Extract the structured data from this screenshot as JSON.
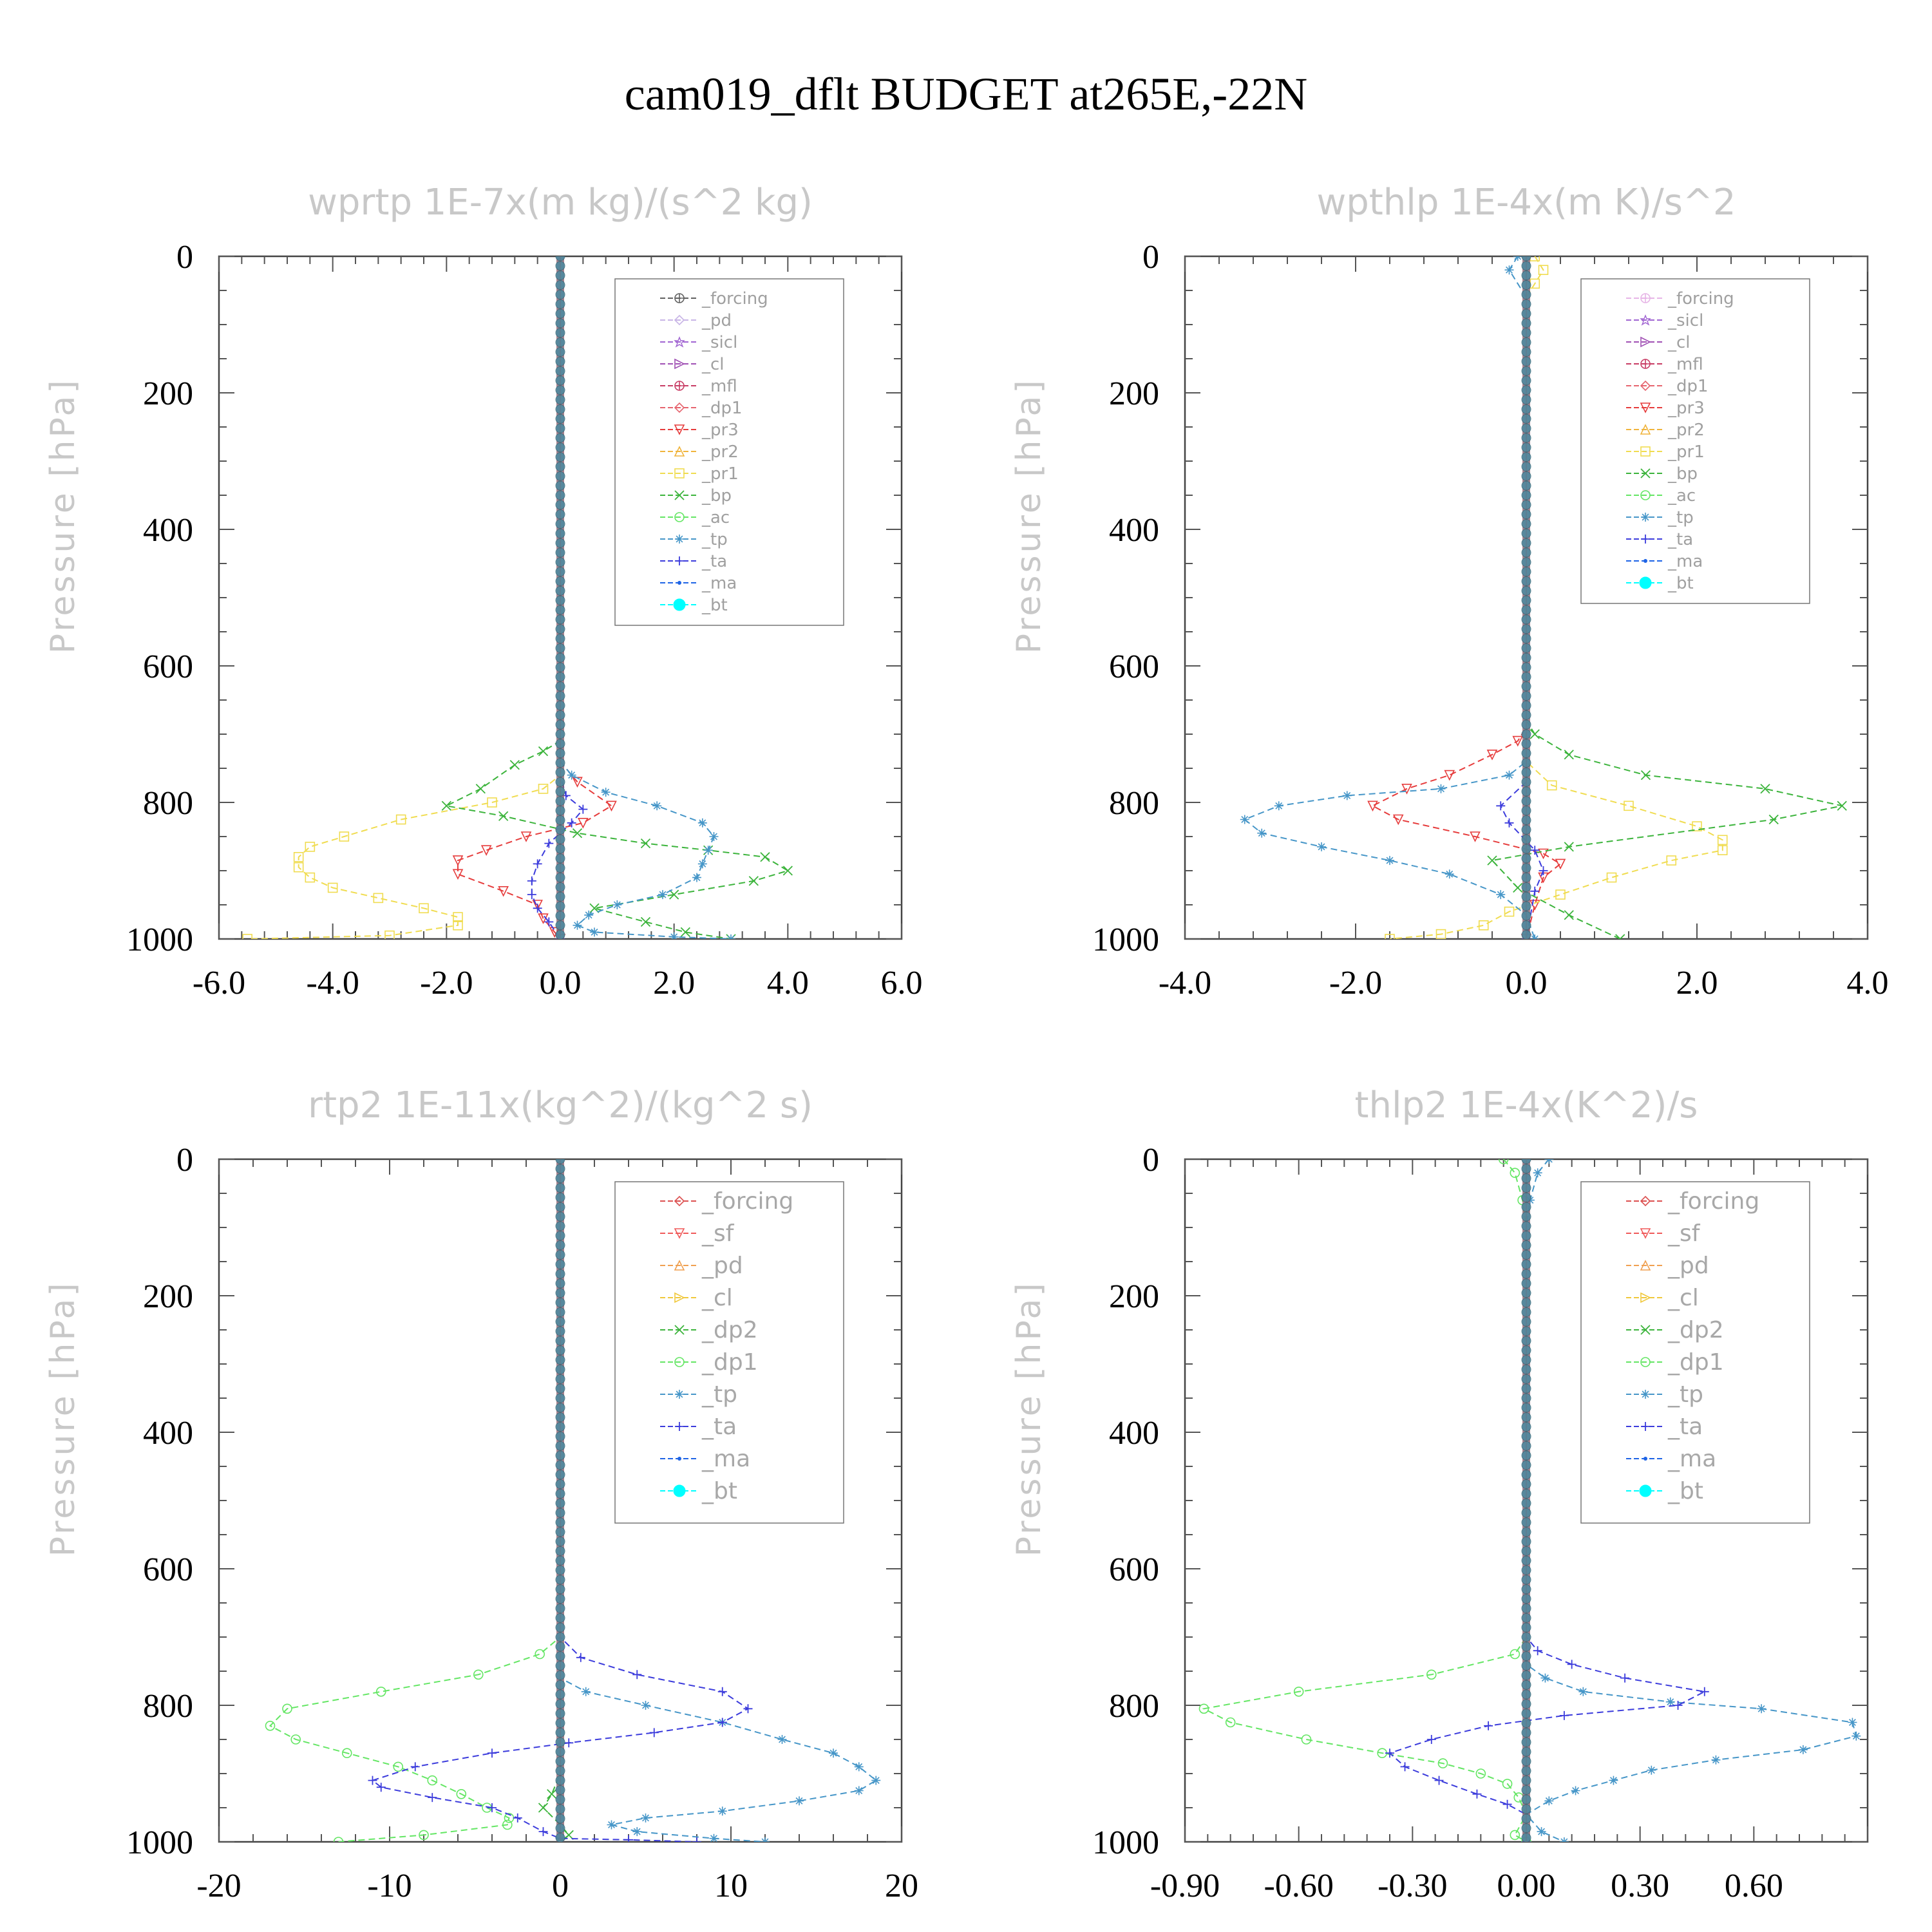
{
  "figure": {
    "title": "cam019_dflt  BUDGET at265E,-22N"
  },
  "chart_data": [
    {
      "type": "line",
      "id": "wprtp",
      "title": "wprtp   1E-7x(m kg)/(s^2 kg)",
      "ylabel": "Pressure [hPa]",
      "xlim": [
        -6.0,
        6.0
      ],
      "ylim": [
        1000,
        0
      ],
      "y_inverted": true,
      "xticks": [
        -6.0,
        -4.0,
        -2.0,
        0.0,
        2.0,
        4.0,
        6.0
      ],
      "xtick_labels": [
        "-6.0",
        "-4.0",
        "-2.0",
        "0.0",
        "2.0",
        "4.0",
        "6.0"
      ],
      "yticks": [
        0,
        200,
        400,
        600,
        800,
        1000
      ],
      "ytick_labels": [
        "0",
        "200",
        "400",
        "600",
        "800",
        "1000"
      ],
      "legend_position": "top-right",
      "legend_large": false,
      "series": [
        {
          "name": "_forcing",
          "color": "#606060",
          "marker": "circle-plus",
          "x": [],
          "y": []
        },
        {
          "name": "_pd",
          "color": "#c8b4e6",
          "marker": "diamond",
          "x": [],
          "y": []
        },
        {
          "name": "_sicl",
          "color": "#a064d2",
          "marker": "star",
          "x": [],
          "y": []
        },
        {
          "name": "_cl",
          "color": "#a050b4",
          "marker": "triangle-right",
          "x": [],
          "y": []
        },
        {
          "name": "_mfl",
          "color": "#c83c64",
          "marker": "circle-plus",
          "x": [],
          "y": []
        },
        {
          "name": "_dp1",
          "color": "#e6646e",
          "marker": "diamond",
          "x": [],
          "y": []
        },
        {
          "name": "_pr3",
          "color": "#e63c3c",
          "marker": "triangle-down",
          "x": [
            0,
            0,
            0,
            0.3,
            0.9,
            0.4,
            -0.6,
            -1.3,
            -1.8,
            -1.8,
            -1.0,
            -0.4,
            -0.3,
            -0.1,
            0
          ],
          "y": [
            0,
            700,
            740,
            770,
            805,
            830,
            850,
            870,
            885,
            905,
            930,
            950,
            970,
            990,
            1000
          ]
        },
        {
          "name": "_pr2",
          "color": "#f0b43c",
          "marker": "triangle-up",
          "x": [],
          "y": []
        },
        {
          "name": "_pr1",
          "color": "#f0dc50",
          "marker": "square",
          "x": [
            0,
            0,
            -0.3,
            -1.2,
            -2.8,
            -3.8,
            -4.4,
            -4.6,
            -4.6,
            -4.4,
            -4.0,
            -3.2,
            -2.4,
            -1.8,
            -1.8,
            -3.0,
            -5.5
          ],
          "y": [
            0,
            760,
            780,
            800,
            825,
            850,
            865,
            880,
            895,
            910,
            925,
            940,
            955,
            968,
            980,
            995,
            1000
          ]
        },
        {
          "name": "_bp",
          "color": "#3cb43c",
          "marker": "x",
          "x": [
            0,
            0,
            -0.3,
            -0.8,
            -1.4,
            -2.0,
            -1.0,
            0.3,
            1.5,
            2.6,
            3.6,
            4.0,
            3.4,
            2.0,
            0.6,
            1.5,
            2.2,
            3.0
          ],
          "y": [
            0,
            710,
            725,
            745,
            780,
            805,
            820,
            845,
            860,
            870,
            880,
            900,
            915,
            935,
            955,
            975,
            990,
            1000
          ]
        },
        {
          "name": "_ac",
          "color": "#64e664",
          "marker": "circle",
          "x": [],
          "y": []
        },
        {
          "name": "_tp",
          "color": "#4696c8",
          "marker": "asterisk",
          "x": [
            0,
            0,
            0.2,
            0.8,
            1.7,
            2.5,
            2.7,
            2.6,
            2.5,
            2.4,
            1.8,
            1.0,
            0.5,
            0.3,
            0.6,
            2.0,
            3.0
          ],
          "y": [
            0,
            740,
            760,
            785,
            805,
            830,
            850,
            870,
            890,
            910,
            935,
            950,
            965,
            980,
            990,
            997,
            1000
          ]
        },
        {
          "name": "_ta",
          "color": "#3c3cdc",
          "marker": "plus",
          "x": [
            0,
            0,
            0.1,
            0.4,
            0.2,
            -0.2,
            -0.4,
            -0.5,
            -0.5,
            -0.4,
            -0.2,
            0
          ],
          "y": [
            0,
            760,
            790,
            810,
            830,
            860,
            890,
            915,
            935,
            955,
            975,
            1000
          ]
        },
        {
          "name": "_ma",
          "color": "#1e64e6",
          "marker": "dot",
          "x": [],
          "y": []
        },
        {
          "name": "_bt",
          "color": "#00ffff",
          "marker": "filled-circle",
          "x": [],
          "y": []
        }
      ]
    },
    {
      "type": "line",
      "id": "wpthlp",
      "title": "wpthlp   1E-4x(m K)/s^2",
      "ylabel": "Pressure [hPa]",
      "xlim": [
        -4.0,
        4.0
      ],
      "ylim": [
        1000,
        0
      ],
      "y_inverted": true,
      "xticks": [
        -4.0,
        -2.0,
        0.0,
        2.0,
        4.0
      ],
      "xtick_labels": [
        "-4.0",
        "-2.0",
        "0.0",
        "2.0",
        "4.0"
      ],
      "yticks": [
        0,
        200,
        400,
        600,
        800,
        1000
      ],
      "ytick_labels": [
        "0",
        "200",
        "400",
        "600",
        "800",
        "1000"
      ],
      "legend_position": "top-right",
      "legend_large": false,
      "series": [
        {
          "name": "_forcing",
          "color": "#e6b4e6",
          "marker": "circle-plus",
          "x": [],
          "y": []
        },
        {
          "name": "_sicl",
          "color": "#a064d2",
          "marker": "star",
          "x": [],
          "y": []
        },
        {
          "name": "_cl",
          "color": "#a050b4",
          "marker": "triangle-right",
          "x": [],
          "y": []
        },
        {
          "name": "_mfl",
          "color": "#c83c64",
          "marker": "circle-plus",
          "x": [],
          "y": []
        },
        {
          "name": "_dp1",
          "color": "#e6646e",
          "marker": "diamond",
          "x": [],
          "y": []
        },
        {
          "name": "_pr3",
          "color": "#e63c3c",
          "marker": "triangle-down",
          "x": [
            0,
            0,
            -0.1,
            -0.4,
            -0.9,
            -1.4,
            -1.8,
            -1.5,
            -0.6,
            0.2,
            0.4,
            0.2,
            0.1,
            0
          ],
          "y": [
            0,
            690,
            710,
            730,
            760,
            780,
            805,
            825,
            850,
            875,
            890,
            910,
            950,
            1000
          ]
        },
        {
          "name": "_pr2",
          "color": "#f0b43c",
          "marker": "triangle-up",
          "x": [],
          "y": []
        },
        {
          "name": "_pr1",
          "color": "#f0dc50",
          "marker": "square",
          "x": [
            0.1,
            0.2,
            0.1,
            0,
            0,
            0.3,
            1.2,
            2.0,
            2.3,
            2.3,
            1.7,
            1.0,
            0.4,
            -0.2,
            -0.5,
            -1.0,
            -1.6
          ],
          "y": [
            0,
            20,
            40,
            60,
            740,
            775,
            805,
            835,
            855,
            870,
            885,
            910,
            935,
            960,
            980,
            993,
            1000
          ]
        },
        {
          "name": "_bp",
          "color": "#3cb43c",
          "marker": "x",
          "x": [
            0,
            0,
            0.1,
            0.5,
            1.4,
            2.8,
            3.7,
            2.9,
            0.5,
            -0.4,
            -0.1,
            0.5,
            1.1
          ],
          "y": [
            0,
            680,
            700,
            730,
            760,
            780,
            805,
            825,
            865,
            885,
            925,
            965,
            1000
          ]
        },
        {
          "name": "_ac",
          "color": "#64e664",
          "marker": "circle",
          "x": [],
          "y": []
        },
        {
          "name": "_tp",
          "color": "#4696c8",
          "marker": "asterisk",
          "x": [
            -0.1,
            -0.2,
            0,
            0,
            -0.2,
            -1.0,
            -2.1,
            -2.9,
            -3.3,
            -3.1,
            -2.4,
            -1.6,
            -0.9,
            -0.3,
            0,
            0.1
          ],
          "y": [
            0,
            20,
            60,
            740,
            760,
            780,
            790,
            805,
            825,
            845,
            865,
            885,
            905,
            935,
            965,
            1000
          ]
        },
        {
          "name": "_ta",
          "color": "#3c3cdc",
          "marker": "plus",
          "x": [
            0,
            0,
            -0.3,
            -0.2,
            0.1,
            0.2,
            0.1,
            0
          ],
          "y": [
            0,
            770,
            805,
            830,
            870,
            900,
            930,
            1000
          ]
        },
        {
          "name": "_ma",
          "color": "#1e64e6",
          "marker": "dot",
          "x": [],
          "y": []
        },
        {
          "name": "_bt",
          "color": "#00ffff",
          "marker": "filled-circle",
          "x": [],
          "y": []
        }
      ]
    },
    {
      "type": "line",
      "id": "rtp2",
      "title": "rtp2   1E-11x(kg^2)/(kg^2 s)",
      "ylabel": "Pressure [hPa]",
      "xlim": [
        -20,
        20
      ],
      "ylim": [
        1000,
        0
      ],
      "y_inverted": true,
      "xticks": [
        -20,
        -10,
        0,
        10,
        20
      ],
      "xtick_labels": [
        "-20",
        "-10",
        "0",
        "10",
        "20"
      ],
      "yticks": [
        0,
        200,
        400,
        600,
        800,
        1000
      ],
      "ytick_labels": [
        "0",
        "200",
        "400",
        "600",
        "800",
        "1000"
      ],
      "legend_position": "top-right",
      "legend_large": true,
      "series": [
        {
          "name": "_forcing",
          "color": "#dc5050",
          "marker": "diamond",
          "x": [],
          "y": []
        },
        {
          "name": "_sf",
          "color": "#f05a5a",
          "marker": "triangle-down",
          "x": [],
          "y": []
        },
        {
          "name": "_pd",
          "color": "#f0a050",
          "marker": "triangle-up",
          "x": [],
          "y": []
        },
        {
          "name": "_cl",
          "color": "#f0c83c",
          "marker": "triangle-right",
          "x": [],
          "y": []
        },
        {
          "name": "_dp2",
          "color": "#3cb43c",
          "marker": "x",
          "x": [
            0,
            0,
            -0.5,
            -1.0,
            0,
            0.5,
            0
          ],
          "y": [
            0,
            900,
            930,
            950,
            975,
            990,
            1000
          ]
        },
        {
          "name": "_dp1",
          "color": "#64e664",
          "marker": "circle",
          "x": [
            0,
            0,
            -1.2,
            -4.8,
            -10.5,
            -16.0,
            -17.0,
            -15.5,
            -12.5,
            -9.5,
            -7.5,
            -5.8,
            -4.3,
            -3.0,
            -3.1,
            -8.0,
            -13.0
          ],
          "y": [
            0,
            700,
            725,
            755,
            780,
            805,
            830,
            850,
            870,
            890,
            910,
            930,
            950,
            965,
            975,
            990,
            1000
          ]
        },
        {
          "name": "_tp",
          "color": "#4696c8",
          "marker": "asterisk",
          "x": [
            0,
            0,
            1.5,
            5.0,
            9.5,
            13.0,
            16.0,
            17.5,
            18.5,
            17.5,
            14.0,
            9.5,
            5.0,
            3.0,
            4.5,
            9.0,
            12.0
          ],
          "y": [
            0,
            760,
            780,
            800,
            825,
            850,
            870,
            890,
            910,
            925,
            940,
            955,
            965,
            975,
            985,
            995,
            1000
          ]
        },
        {
          "name": "_ta",
          "color": "#3c3cdc",
          "marker": "plus",
          "x": [
            0,
            0,
            1.2,
            4.5,
            9.5,
            11.0,
            9.5,
            5.5,
            0.5,
            -4.0,
            -8.5,
            -11.0,
            -10.5,
            -7.5,
            -4.0,
            -2.5,
            -1.0,
            0,
            4.0,
            8.0
          ],
          "y": [
            0,
            700,
            730,
            755,
            780,
            805,
            825,
            840,
            855,
            870,
            890,
            910,
            920,
            935,
            950,
            965,
            985,
            995,
            997,
            1000
          ]
        },
        {
          "name": "_ma",
          "color": "#1e64e6",
          "marker": "dot",
          "x": [],
          "y": []
        },
        {
          "name": "_bt",
          "color": "#00ffff",
          "marker": "filled-circle",
          "x": [],
          "y": []
        }
      ]
    },
    {
      "type": "line",
      "id": "thlp2",
      "title": "thlp2   1E-4x(K^2)/s",
      "ylabel": "Pressure [hPa]",
      "xlim": [
        -0.9,
        0.9
      ],
      "ylim": [
        1000,
        0
      ],
      "y_inverted": true,
      "xticks": [
        -0.9,
        -0.6,
        -0.3,
        0.0,
        0.3,
        0.6
      ],
      "xtick_labels": [
        "-0.90",
        "-0.60",
        "-0.30",
        "0.00",
        "0.30",
        "0.60"
      ],
      "yticks": [
        0,
        200,
        400,
        600,
        800,
        1000
      ],
      "ytick_labels": [
        "0",
        "200",
        "400",
        "600",
        "800",
        "1000"
      ],
      "legend_position": "top-right",
      "legend_large": true,
      "series": [
        {
          "name": "_forcing",
          "color": "#dc5050",
          "marker": "diamond",
          "x": [],
          "y": []
        },
        {
          "name": "_sf",
          "color": "#f05a5a",
          "marker": "triangle-down",
          "x": [],
          "y": []
        },
        {
          "name": "_pd",
          "color": "#f0a050",
          "marker": "triangle-up",
          "x": [],
          "y": []
        },
        {
          "name": "_cl",
          "color": "#f0c83c",
          "marker": "triangle-right",
          "x": [],
          "y": []
        },
        {
          "name": "_dp2",
          "color": "#3cb43c",
          "marker": "x",
          "x": [],
          "y": []
        },
        {
          "name": "_dp1",
          "color": "#64e664",
          "marker": "circle",
          "x": [
            -0.06,
            -0.03,
            -0.01,
            0,
            0,
            -0.03,
            -0.25,
            -0.6,
            -0.85,
            -0.78,
            -0.58,
            -0.38,
            -0.22,
            -0.12,
            -0.05,
            -0.02,
            0,
            -0.03,
            0
          ],
          "y": [
            0,
            20,
            60,
            100,
            700,
            725,
            755,
            780,
            805,
            825,
            850,
            870,
            885,
            900,
            915,
            935,
            960,
            990,
            1000
          ]
        },
        {
          "name": "_tp",
          "color": "#4696c8",
          "marker": "asterisk",
          "x": [
            0.06,
            0.03,
            0.01,
            0,
            0,
            0.05,
            0.15,
            0.38,
            0.62,
            0.86,
            0.87,
            0.73,
            0.5,
            0.33,
            0.23,
            0.13,
            0.06,
            0,
            0.04,
            0.1
          ],
          "y": [
            0,
            20,
            60,
            100,
            740,
            760,
            780,
            795,
            805,
            825,
            845,
            865,
            880,
            895,
            910,
            925,
            940,
            960,
            985,
            1000
          ]
        },
        {
          "name": "_ta",
          "color": "#3c3cdc",
          "marker": "plus",
          "x": [
            0,
            0,
            0.03,
            0.12,
            0.26,
            0.47,
            0.4,
            0.1,
            -0.1,
            -0.25,
            -0.36,
            -0.32,
            -0.23,
            -0.13,
            -0.05,
            0,
            0
          ],
          "y": [
            0,
            700,
            720,
            740,
            760,
            780,
            800,
            815,
            830,
            850,
            870,
            890,
            910,
            930,
            945,
            960,
            1000
          ]
        },
        {
          "name": "_ma",
          "color": "#1e64e6",
          "marker": "dot",
          "x": [],
          "y": []
        },
        {
          "name": "_bt",
          "color": "#00ffff",
          "marker": "filled-circle",
          "x": [],
          "y": []
        }
      ]
    }
  ]
}
